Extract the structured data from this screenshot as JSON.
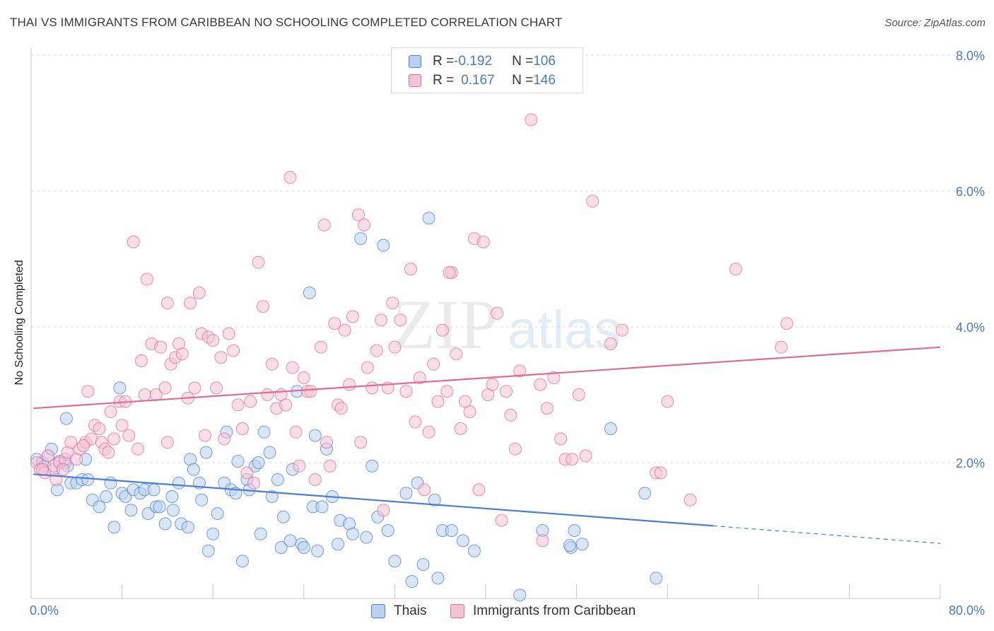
{
  "title": "THAI VS IMMIGRANTS FROM CARIBBEAN NO SCHOOLING COMPLETED CORRELATION CHART",
  "source": "Source: ZipAtlas.com",
  "watermark": {
    "zip": "ZIP",
    "atlas": "atlas"
  },
  "legend": {
    "row1": {
      "r_label": "R = ",
      "r_value": "-0.192",
      "n_label": "N = ",
      "n_value": "106"
    },
    "row2": {
      "r_label": "R = ",
      "r_value": "0.167",
      "n_label": "N = ",
      "n_value": "146"
    }
  },
  "colors": {
    "thai": "#4a7fd4",
    "thai_fill": "#b9d2f3",
    "carib": "#e06b94",
    "carib_fill": "#f6c3d4",
    "tick_text": "#4a7bc8",
    "grid": "#dcdcdc"
  },
  "chart_data": {
    "type": "scatter",
    "title": "THAI VS IMMIGRANTS FROM CARIBBEAN NO SCHOOLING COMPLETED CORRELATION CHART",
    "xlabel": "",
    "ylabel": "No Schooling Completed",
    "xlim": [
      0,
      80
    ],
    "ylim": [
      0,
      8.0
    ],
    "x_tick_labels": [
      "0.0%",
      "80.0%"
    ],
    "y_ticks": [
      2.0,
      4.0,
      6.0,
      8.0
    ],
    "y_tick_labels": [
      "2.0%",
      "4.0%",
      "6.0%",
      "8.0%"
    ],
    "grid": true,
    "legend_position": "top-center",
    "series": [
      {
        "name": "Thais",
        "color": "#4a7fd4",
        "r": -0.192,
        "n": 106,
        "trend": {
          "x0": 0.2,
          "y0": 1.83,
          "x1": 60.0,
          "y1": 1.07,
          "dashed_to_x": 80.0,
          "dashed_y": 0.81
        },
        "points": [
          [
            0.5,
            2.05
          ],
          [
            1.0,
            2.0
          ],
          [
            1.2,
            1.95
          ],
          [
            1.5,
            2.1
          ],
          [
            2.0,
            1.9
          ],
          [
            2.5,
            2.02
          ],
          [
            3.0,
            2.0
          ],
          [
            1.8,
            2.2
          ],
          [
            2.3,
            1.6
          ],
          [
            3.2,
            1.95
          ],
          [
            3.1,
            2.65
          ],
          [
            3.5,
            1.7
          ],
          [
            4.0,
            1.7
          ],
          [
            4.5,
            1.75
          ],
          [
            4.8,
            2.05
          ],
          [
            5.0,
            1.75
          ],
          [
            5.4,
            1.45
          ],
          [
            6.0,
            1.35
          ],
          [
            6.6,
            1.5
          ],
          [
            7.0,
            1.7
          ],
          [
            7.3,
            1.05
          ],
          [
            7.8,
            3.1
          ],
          [
            8.0,
            1.55
          ],
          [
            8.3,
            1.5
          ],
          [
            8.8,
            1.3
          ],
          [
            9.0,
            1.6
          ],
          [
            9.6,
            1.55
          ],
          [
            10.0,
            1.6
          ],
          [
            10.3,
            1.25
          ],
          [
            10.8,
            1.6
          ],
          [
            11.0,
            1.35
          ],
          [
            11.3,
            1.35
          ],
          [
            11.8,
            1.1
          ],
          [
            12.4,
            1.5
          ],
          [
            12.5,
            1.3
          ],
          [
            13.0,
            1.7
          ],
          [
            13.2,
            1.1
          ],
          [
            13.8,
            1.05
          ],
          [
            14.0,
            2.05
          ],
          [
            14.3,
            1.9
          ],
          [
            14.8,
            1.7
          ],
          [
            15.0,
            1.45
          ],
          [
            15.4,
            2.15
          ],
          [
            15.6,
            0.7
          ],
          [
            16.0,
            0.95
          ],
          [
            16.4,
            1.25
          ],
          [
            17.0,
            1.7
          ],
          [
            17.2,
            2.45
          ],
          [
            17.6,
            1.6
          ],
          [
            18.0,
            1.55
          ],
          [
            18.2,
            2.02
          ],
          [
            18.6,
            0.55
          ],
          [
            19.0,
            1.75
          ],
          [
            19.2,
            1.6
          ],
          [
            19.7,
            1.95
          ],
          [
            20.0,
            2.0
          ],
          [
            20.2,
            0.95
          ],
          [
            20.5,
            2.45
          ],
          [
            21.0,
            2.15
          ],
          [
            21.2,
            1.5
          ],
          [
            21.7,
            1.75
          ],
          [
            22.0,
            0.75
          ],
          [
            22.2,
            1.2
          ],
          [
            22.8,
            0.85
          ],
          [
            23.0,
            1.9
          ],
          [
            23.4,
            3.05
          ],
          [
            23.8,
            0.8
          ],
          [
            24.0,
            0.75
          ],
          [
            24.5,
            4.5
          ],
          [
            24.8,
            1.35
          ],
          [
            25.0,
            2.4
          ],
          [
            25.2,
            0.7
          ],
          [
            25.6,
            1.35
          ],
          [
            26.0,
            2.2
          ],
          [
            26.5,
            1.5
          ],
          [
            27.0,
            0.8
          ],
          [
            27.2,
            1.15
          ],
          [
            28.0,
            1.1
          ],
          [
            28.3,
            0.95
          ],
          [
            29.0,
            5.3
          ],
          [
            29.5,
            0.9
          ],
          [
            30.0,
            1.95
          ],
          [
            30.5,
            1.2
          ],
          [
            31.0,
            5.2
          ],
          [
            31.4,
            1.0
          ],
          [
            32.0,
            0.55
          ],
          [
            33.0,
            1.55
          ],
          [
            33.5,
            0.25
          ],
          [
            34.0,
            1.7
          ],
          [
            34.5,
            0.5
          ],
          [
            35.0,
            5.6
          ],
          [
            35.5,
            1.45
          ],
          [
            35.8,
            0.3
          ],
          [
            36.2,
            1.0
          ],
          [
            37.0,
            1.0
          ],
          [
            38.0,
            0.85
          ],
          [
            39.0,
            0.7
          ],
          [
            45.0,
            1.0
          ],
          [
            47.5,
            0.75
          ],
          [
            47.8,
            1.0
          ],
          [
            48.5,
            0.8
          ],
          [
            51.0,
            2.5
          ],
          [
            54.0,
            1.55
          ],
          [
            55.0,
            0.3
          ],
          [
            47.4,
            0.78
          ],
          [
            43.0,
            0.05
          ]
        ]
      },
      {
        "name": "Immigrants from Caribbean",
        "color": "#e06b94",
        "r": 0.167,
        "n": 146,
        "trend": {
          "x0": 0.2,
          "y0": 2.8,
          "x1": 80.0,
          "y1": 3.7
        },
        "points": [
          [
            0.5,
            2.0
          ],
          [
            0.8,
            1.9
          ],
          [
            1.2,
            1.85
          ],
          [
            1.5,
            2.1
          ],
          [
            2.0,
            1.95
          ],
          [
            2.2,
            1.75
          ],
          [
            2.5,
            2.0
          ],
          [
            3.0,
            2.05
          ],
          [
            3.2,
            2.15
          ],
          [
            3.5,
            2.3
          ],
          [
            4.0,
            2.05
          ],
          [
            4.3,
            2.2
          ],
          [
            4.8,
            2.3
          ],
          [
            5.0,
            3.05
          ],
          [
            5.3,
            2.35
          ],
          [
            5.6,
            2.55
          ],
          [
            6.0,
            2.5
          ],
          [
            6.2,
            2.3
          ],
          [
            6.5,
            2.2
          ],
          [
            6.8,
            2.15
          ],
          [
            7.0,
            2.75
          ],
          [
            7.3,
            2.35
          ],
          [
            7.8,
            2.9
          ],
          [
            8.0,
            2.55
          ],
          [
            8.3,
            2.9
          ],
          [
            8.6,
            2.4
          ],
          [
            9.0,
            5.25
          ],
          [
            9.4,
            2.2
          ],
          [
            9.7,
            3.5
          ],
          [
            10.0,
            3.0
          ],
          [
            10.2,
            4.7
          ],
          [
            10.6,
            3.75
          ],
          [
            11.0,
            3.0
          ],
          [
            11.4,
            3.7
          ],
          [
            11.8,
            3.1
          ],
          [
            12.0,
            4.35
          ],
          [
            12.3,
            3.45
          ],
          [
            12.7,
            3.55
          ],
          [
            13.0,
            3.75
          ],
          [
            13.3,
            3.6
          ],
          [
            13.8,
            2.95
          ],
          [
            14.0,
            4.35
          ],
          [
            14.4,
            3.1
          ],
          [
            14.8,
            4.5
          ],
          [
            15.0,
            3.9
          ],
          [
            15.3,
            2.4
          ],
          [
            15.6,
            3.85
          ],
          [
            16.0,
            3.8
          ],
          [
            16.3,
            3.1
          ],
          [
            16.7,
            3.55
          ],
          [
            17.0,
            2.35
          ],
          [
            17.4,
            3.9
          ],
          [
            17.8,
            3.65
          ],
          [
            18.2,
            2.85
          ],
          [
            18.6,
            2.5
          ],
          [
            19.0,
            1.85
          ],
          [
            19.3,
            2.9
          ],
          [
            19.6,
            1.7
          ],
          [
            20.0,
            4.95
          ],
          [
            20.4,
            4.3
          ],
          [
            20.8,
            3.0
          ],
          [
            21.2,
            3.45
          ],
          [
            21.6,
            2.8
          ],
          [
            22.0,
            3.0
          ],
          [
            22.4,
            2.85
          ],
          [
            22.8,
            6.2
          ],
          [
            23.0,
            3.4
          ],
          [
            23.3,
            2.45
          ],
          [
            23.6,
            1.95
          ],
          [
            24.0,
            3.25
          ],
          [
            24.3,
            3.05
          ],
          [
            24.6,
            3.05
          ],
          [
            25.0,
            1.75
          ],
          [
            25.5,
            3.7
          ],
          [
            25.8,
            5.5
          ],
          [
            26.0,
            2.3
          ],
          [
            26.3,
            1.95
          ],
          [
            26.7,
            4.05
          ],
          [
            27.0,
            2.85
          ],
          [
            27.3,
            2.8
          ],
          [
            27.6,
            3.95
          ],
          [
            28.0,
            3.15
          ],
          [
            28.3,
            4.15
          ],
          [
            28.8,
            5.65
          ],
          [
            29.0,
            2.3
          ],
          [
            29.3,
            5.5
          ],
          [
            29.6,
            3.4
          ],
          [
            30.0,
            3.1
          ],
          [
            30.4,
            3.65
          ],
          [
            30.8,
            4.1
          ],
          [
            31.0,
            1.3
          ],
          [
            31.4,
            3.1
          ],
          [
            31.8,
            4.35
          ],
          [
            32.0,
            3.7
          ],
          [
            32.5,
            4.1
          ],
          [
            33.0,
            3.05
          ],
          [
            33.4,
            4.85
          ],
          [
            33.8,
            2.6
          ],
          [
            34.2,
            3.25
          ],
          [
            34.6,
            1.6
          ],
          [
            35.0,
            2.45
          ],
          [
            35.4,
            3.45
          ],
          [
            35.8,
            2.9
          ],
          [
            36.2,
            3.95
          ],
          [
            36.6,
            3.05
          ],
          [
            37.0,
            4.8
          ],
          [
            37.4,
            3.6
          ],
          [
            37.8,
            2.5
          ],
          [
            38.2,
            2.9
          ],
          [
            38.6,
            2.75
          ],
          [
            39.0,
            5.3
          ],
          [
            39.4,
            1.6
          ],
          [
            39.8,
            5.25
          ],
          [
            40.2,
            3.0
          ],
          [
            40.6,
            3.15
          ],
          [
            41.0,
            4.2
          ],
          [
            41.4,
            1.15
          ],
          [
            41.8,
            3.05
          ],
          [
            42.2,
            2.7
          ],
          [
            42.6,
            2.2
          ],
          [
            43.0,
            3.35
          ],
          [
            44.0,
            7.05
          ],
          [
            44.8,
            3.15
          ],
          [
            45.0,
            0.85
          ],
          [
            45.4,
            2.8
          ],
          [
            46.0,
            3.25
          ],
          [
            46.6,
            2.35
          ],
          [
            47.0,
            2.05
          ],
          [
            47.6,
            2.05
          ],
          [
            48.2,
            3.0
          ],
          [
            48.8,
            2.1
          ],
          [
            49.4,
            5.85
          ],
          [
            51.0,
            3.75
          ],
          [
            52.0,
            3.95
          ],
          [
            55.0,
            1.85
          ],
          [
            55.4,
            1.85
          ],
          [
            56.0,
            2.9
          ],
          [
            58.0,
            1.45
          ],
          [
            62.0,
            4.85
          ],
          [
            66.0,
            3.7
          ],
          [
            66.5,
            4.05
          ],
          [
            1.0,
            1.9
          ],
          [
            2.8,
            1.9
          ],
          [
            4.6,
            2.25
          ],
          [
            36.8,
            4.8
          ],
          [
            12.0,
            2.3
          ]
        ]
      }
    ]
  },
  "bottom_legend": {
    "series1": "Thais",
    "series2": "Immigrants from Caribbean"
  }
}
